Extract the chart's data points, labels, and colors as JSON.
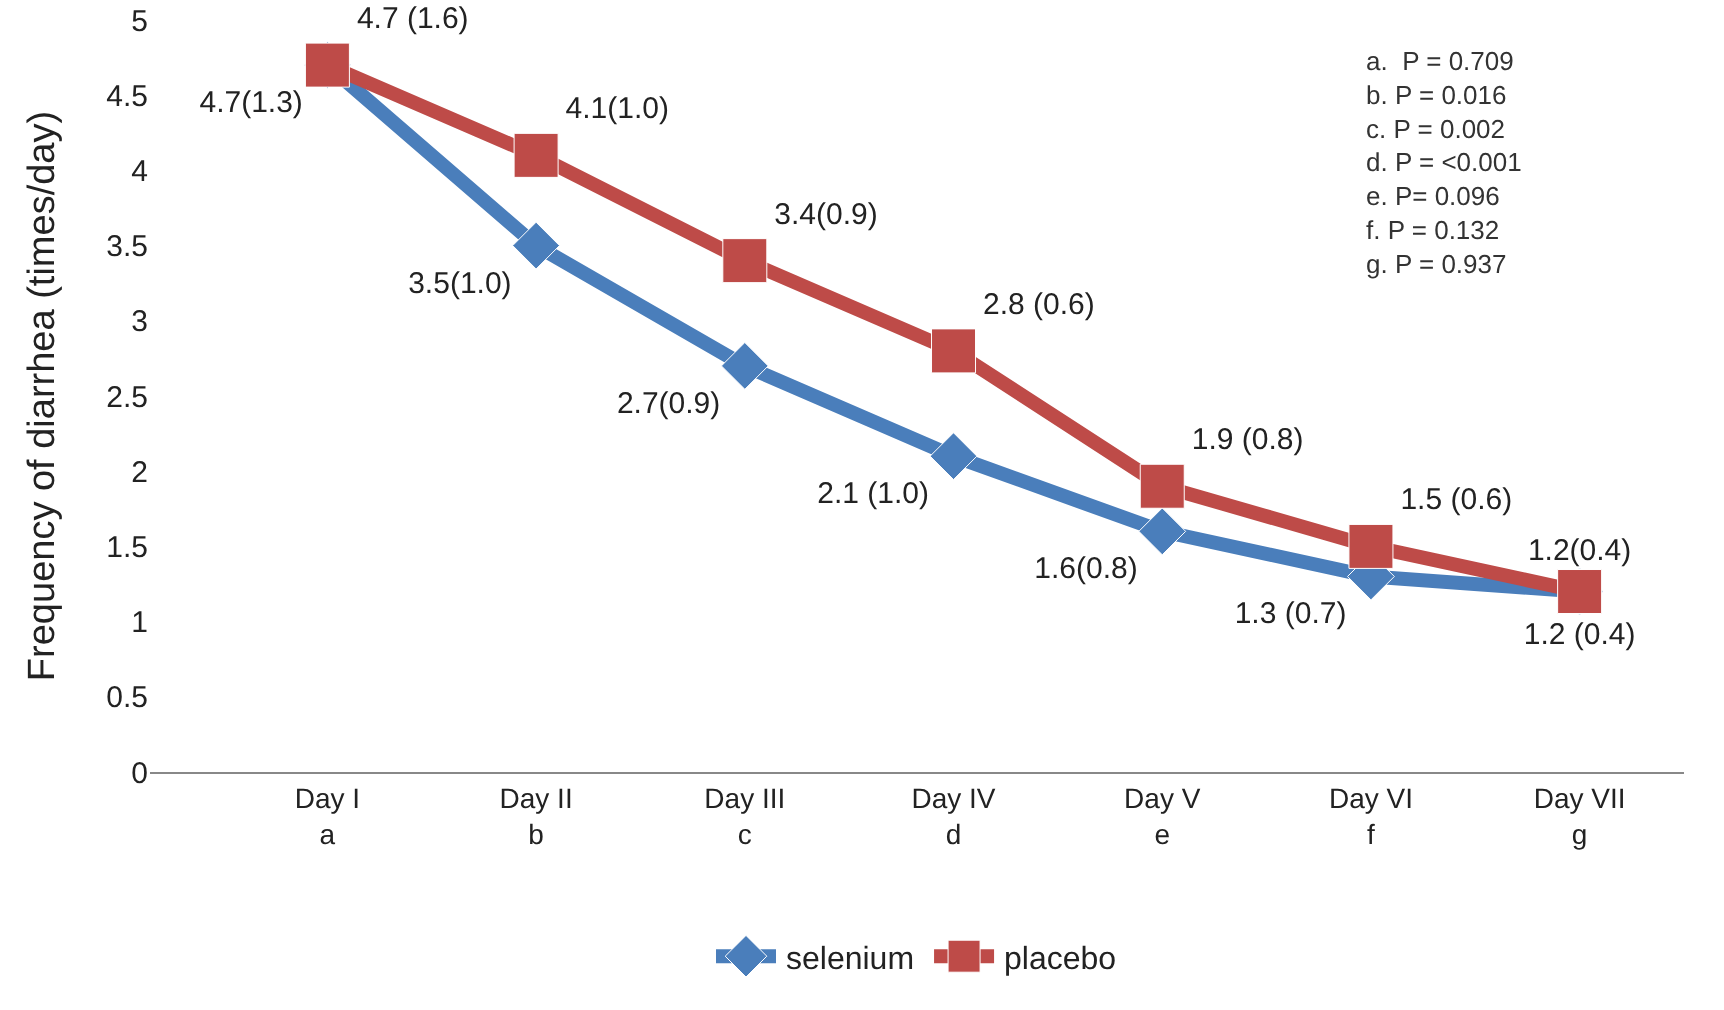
{
  "chart_data": {
    "type": "line",
    "ylabel": "Frequency of diarrhea (times/day)",
    "categories": [
      "Day I\na",
      "Day II\nb",
      "Day III\nc",
      "Day IV\nd",
      "Day V\ne",
      "Day VI\nf",
      "Day VII\ng"
    ],
    "series": [
      {
        "name": "selenium",
        "color": "#4a7ebb",
        "marker": "diamond",
        "values": [
          4.7,
          3.5,
          2.7,
          2.1,
          1.6,
          1.3,
          1.2
        ],
        "value_labels": [
          "4.7(1.3)",
          "3.5(1.0)",
          "2.7(0.9)",
          "2.1 (1.0)",
          "1.6(0.8)",
          "1.3 (0.7)",
          "1.2(0.4)"
        ]
      },
      {
        "name": "placebo",
        "color": "#be4b48",
        "marker": "square",
        "values": [
          4.7,
          4.1,
          3.4,
          2.8,
          1.9,
          1.5,
          1.2
        ],
        "value_labels": [
          "4.7 (1.6)",
          "4.1(1.0)",
          "3.4(0.9)",
          "2.8 (0.6)",
          "1.9 (0.8)",
          "1.5 (0.6)",
          "1.2 (0.4)"
        ]
      }
    ],
    "annotations": [
      "a.  P = 0.709\nb. P = 0.016\nc. P = 0.002\nd. P = <0.001\ne. P= 0.096\nf. P = 0.132\ng. P = 0.937"
    ],
    "ylim": [
      0,
      5
    ],
    "yticks": [
      0,
      0.5,
      1,
      1.5,
      2,
      2.5,
      3,
      3.5,
      4,
      4.5,
      5
    ],
    "grid": false,
    "legend": "bottom",
    "line_style": "solid"
  }
}
